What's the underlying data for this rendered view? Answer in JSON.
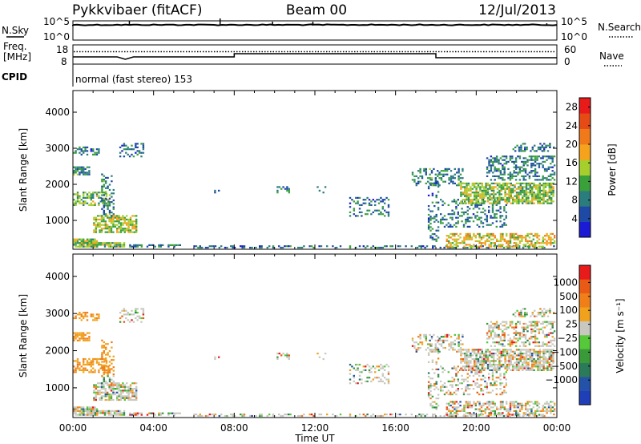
{
  "header": {
    "title": "Pykkvibaer (fitACF)",
    "beam": "Beam 00",
    "date": "12/Jul/2013"
  },
  "side_labels": {
    "n_sky": "N.Sky",
    "freq": "Freq.",
    "freq_unit": "[MHz]",
    "cpid": "CPID",
    "n_search": "N.Search",
    "nave": "Nave"
  },
  "noise_panel": {
    "left_ticks": [
      "10^5",
      "10^0"
    ],
    "right_ticks": [
      "10^5",
      "10^0"
    ]
  },
  "freq_panel": {
    "left_ticks": [
      "18",
      "8"
    ],
    "right_ticks": [
      "60",
      "0"
    ]
  },
  "cpid_panel": {
    "text": "normal (fast stereo) 153"
  },
  "colors": {
    "power": [
      "#1b1bd6",
      "#1e4aa6",
      "#2b7d7d",
      "#3aa03a",
      "#a6cf2e",
      "#f5a31c",
      "#f07a1a",
      "#e64b16",
      "#e81a1a"
    ],
    "velocity": [
      "#1e3fb8",
      "#2352a8",
      "#2b7a5a",
      "#3a9a3a",
      "#55c93a",
      "#c8c8c0",
      "#f0a21c",
      "#f07f1a",
      "#ea5a17",
      "#e81a1a"
    ]
  },
  "chart_data": [
    {
      "type": "heatmap",
      "name": "power",
      "ylabel": "Slant Range [km]",
      "yticks": [
        "1000",
        "2000",
        "3000",
        "4000"
      ],
      "ylim": [
        200,
        4600
      ],
      "xlim": [
        "00:00",
        "24:00"
      ],
      "colorbar": {
        "label": "Power [dB]",
        "ticks": [
          "4",
          "8",
          "12",
          "16",
          "20",
          "24",
          "28"
        ],
        "range": [
          0,
          30
        ]
      }
    },
    {
      "type": "heatmap",
      "name": "velocity",
      "ylabel": "Slant Range [km]",
      "yticks": [
        "1000",
        "2000",
        "3000",
        "4000"
      ],
      "ylim": [
        200,
        4600
      ],
      "xlim": [
        "00:00",
        "24:00"
      ],
      "xlabel": "Time UT",
      "xticks": [
        "00:00",
        "04:00",
        "08:00",
        "12:00",
        "16:00",
        "20:00",
        "00:00"
      ],
      "colorbar": {
        "label": "Velocity [m s⁻¹]",
        "ticks": [
          "1000",
          "500",
          "100",
          "25",
          "−25",
          "−100",
          "−500",
          "−1000"
        ]
      }
    }
  ]
}
